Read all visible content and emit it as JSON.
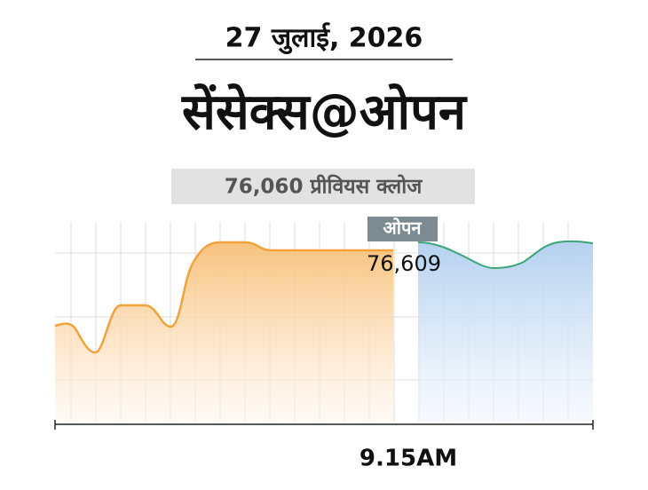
{
  "chart_data": {
    "type": "line",
    "date": "27 जुलाई, 2026",
    "title": "सेंसेक्स@ओपन",
    "subtitle": "76,060 प्रीवियस क्लोज",
    "open_label": "ओपन",
    "open_value_label": "76,609",
    "x_label": "9.15AM"
  }
}
